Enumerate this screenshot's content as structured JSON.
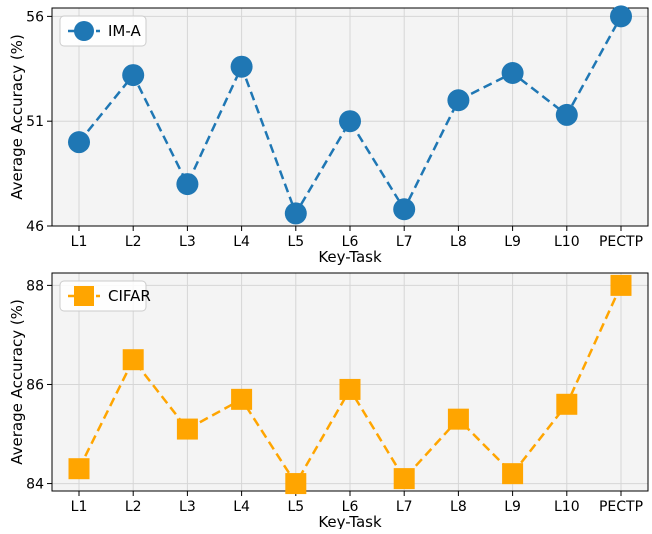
{
  "chart_data": [
    {
      "type": "line",
      "categories": [
        "L1",
        "L2",
        "L3",
        "L4",
        "L5",
        "L6",
        "L7",
        "L8",
        "L9",
        "L10",
        "PECTP"
      ],
      "series": [
        {
          "name": "IM-A",
          "values": [
            50.0,
            53.2,
            48.0,
            53.6,
            46.6,
            51.0,
            46.8,
            52.0,
            53.3,
            51.3,
            56.0
          ],
          "color": "#1f77b4",
          "marker": "circle",
          "line_style": "dashed"
        }
      ],
      "xlabel": "Key-Task",
      "ylabel": "Average Accuracy (%)",
      "ylim": [
        46,
        56.4
      ],
      "yticks": [
        46,
        51,
        56
      ],
      "grid": true,
      "legend_position": "top-left",
      "background": "#f4f4f4"
    },
    {
      "type": "line",
      "categories": [
        "L1",
        "L2",
        "L3",
        "L4",
        "L5",
        "L6",
        "L7",
        "L8",
        "L9",
        "L10",
        "PECTP"
      ],
      "series": [
        {
          "name": "CIFAR",
          "values": [
            84.3,
            86.5,
            85.1,
            85.7,
            84.0,
            85.9,
            84.1,
            85.3,
            84.2,
            85.6,
            88.0
          ],
          "color": "#ffa500",
          "marker": "square",
          "line_style": "dashed"
        }
      ],
      "xlabel": "Key-Task",
      "ylabel": "Average Accuracy (%)",
      "ylim": [
        83.85,
        88.25
      ],
      "yticks": [
        84,
        86,
        88
      ],
      "grid": true,
      "legend_position": "top-left",
      "background": "#f4f4f4"
    }
  ]
}
